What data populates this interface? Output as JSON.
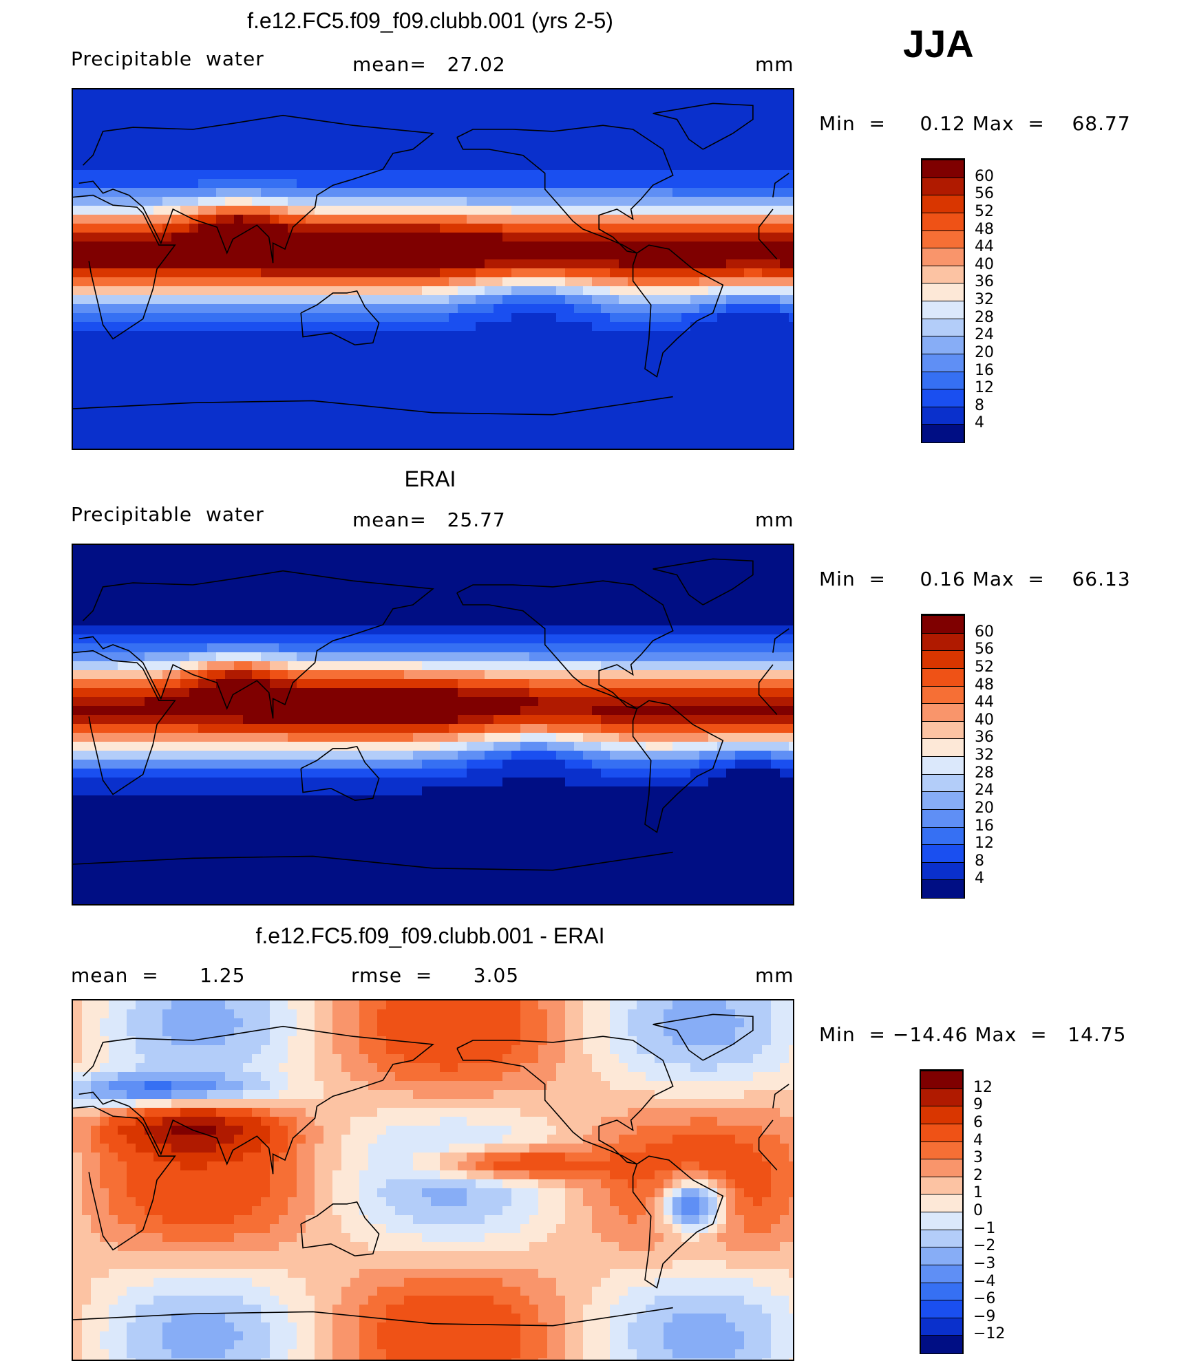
{
  "season": "JJA",
  "panels": [
    {
      "id": "model",
      "title": "f.e12.FC5.f09_f09.clubb.001 (yrs 2-5)",
      "left_label": "Precipitable  water",
      "center_label": "mean=   27.02",
      "units": "mm",
      "min_label": "Min  =",
      "min_value": "0.12",
      "max_label": "Max  =",
      "max_value": "68.77",
      "colorbar": {
        "labels": [
          "60",
          "56",
          "52",
          "48",
          "44",
          "40",
          "36",
          "32",
          "28",
          "24",
          "20",
          "16",
          "12",
          "8",
          "4"
        ],
        "colors": [
          "#7f0000",
          "#b01a00",
          "#d93600",
          "#ef5216",
          "#f66f35",
          "#f9956b",
          "#fcc3a3",
          "#fde8d7",
          "#dbe8fb",
          "#b3cdf9",
          "#87adf6",
          "#5f8ff5",
          "#3670f3",
          "#1a4ff0",
          "#0a30cc",
          "#000e84"
        ]
      }
    },
    {
      "id": "obs",
      "title": "ERAI",
      "left_label": "Precipitable  water",
      "center_label": "mean=   25.77",
      "units": "mm",
      "min_label": "Min  =",
      "min_value": "0.16",
      "max_label": "Max  =",
      "max_value": "66.13",
      "colorbar": {
        "labels": [
          "60",
          "56",
          "52",
          "48",
          "44",
          "40",
          "36",
          "32",
          "28",
          "24",
          "20",
          "16",
          "12",
          "8",
          "4"
        ],
        "colors": [
          "#7f0000",
          "#b01a00",
          "#d93600",
          "#ef5216",
          "#f66f35",
          "#f9956b",
          "#fcc3a3",
          "#fde8d7",
          "#dbe8fb",
          "#b3cdf9",
          "#87adf6",
          "#5f8ff5",
          "#3670f3",
          "#1a4ff0",
          "#0a30cc",
          "#000e84"
        ]
      }
    },
    {
      "id": "diff",
      "title": "f.e12.FC5.f09_f09.clubb.001 - ERAI",
      "left_label": "mean  =      1.25",
      "center_label": "rmse  =      3.05",
      "units": "mm",
      "min_label": "Min  =",
      "min_value": "−14.46",
      "max_label": "Max  =",
      "max_value": "14.75",
      "colorbar": {
        "labels": [
          "12",
          "9",
          "6",
          "4",
          "3",
          "2",
          "1",
          "0",
          "−1",
          "−2",
          "−3",
          "−4",
          "−6",
          "−9",
          "−12"
        ],
        "colors": [
          "#7f0000",
          "#b01a00",
          "#d93600",
          "#ef5216",
          "#f66f35",
          "#f9956b",
          "#fcc3a3",
          "#fde8d7",
          "#dbe8fb",
          "#b3cdf9",
          "#87adf6",
          "#5f8ff5",
          "#3670f3",
          "#1a4ff0",
          "#0a30cc",
          "#000e84"
        ]
      }
    }
  ]
}
